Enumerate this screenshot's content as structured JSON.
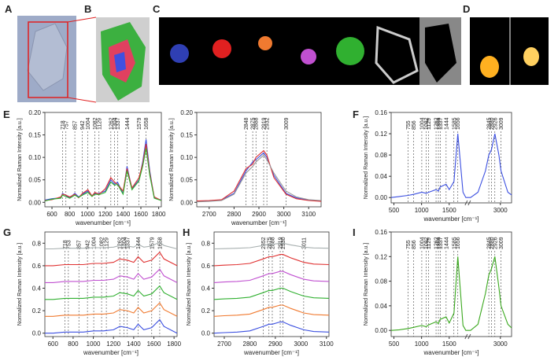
{
  "image_panels": [
    {
      "label": "A"
    },
    {
      "label": "B"
    },
    {
      "label": "C"
    },
    {
      "label": "D"
    }
  ],
  "chart_data": [
    {
      "type": "line",
      "panel": "E",
      "ylabel": "Normalized Raman Intensity [a.u.]",
      "xlabel": "wavenumber [cm⁻¹]",
      "xlim": [
        520,
        1830
      ],
      "xticks": [
        600,
        800,
        1000,
        1200,
        1400,
        1600,
        1800
      ],
      "ylim": [
        -0.01,
        0.2
      ],
      "yticks": [
        {
          "value": 0,
          "label": "0.00"
        },
        0.05,
        {
          "value": 0.1,
          "label": "0.10"
        },
        0.15,
        {
          "value": 0.2,
          "label": "0.20"
        }
      ],
      "peaks": [
        718,
        757,
        857,
        942,
        1004,
        1082,
        1129,
        1262,
        1304,
        1337,
        1444,
        1579,
        1658
      ],
      "x": [
        520,
        600,
        700,
        718,
        757,
        800,
        857,
        900,
        942,
        1004,
        1050,
        1082,
        1129,
        1200,
        1262,
        1304,
        1337,
        1400,
        1444,
        1500,
        1579,
        1620,
        1658,
        1700,
        1750,
        1830
      ],
      "series": [
        {
          "color": "#3b4fe0",
          "values": [
            0.005,
            0.008,
            0.01,
            0.02,
            0.015,
            0.01,
            0.02,
            0.012,
            0.018,
            0.025,
            0.015,
            0.02,
            0.02,
            0.025,
            0.05,
            0.04,
            0.045,
            0.02,
            0.08,
            0.03,
            0.05,
            0.09,
            0.14,
            0.07,
            0.01,
            0.005
          ]
        },
        {
          "color": "#e03030",
          "values": [
            0.004,
            0.006,
            0.012,
            0.018,
            0.016,
            0.012,
            0.018,
            0.01,
            0.02,
            0.028,
            0.014,
            0.022,
            0.018,
            0.03,
            0.055,
            0.045,
            0.04,
            0.025,
            0.075,
            0.032,
            0.055,
            0.085,
            0.13,
            0.065,
            0.012,
            0.004
          ]
        },
        {
          "color": "#30b030",
          "values": [
            0.003,
            0.007,
            0.009,
            0.016,
            0.013,
            0.009,
            0.016,
            0.011,
            0.016,
            0.022,
            0.013,
            0.018,
            0.017,
            0.022,
            0.045,
            0.038,
            0.04,
            0.018,
            0.07,
            0.028,
            0.048,
            0.08,
            0.12,
            0.06,
            0.009,
            0.004
          ]
        }
      ]
    },
    {
      "type": "line",
      "ylabel": "Normalized Raman Intensity [a.u.]",
      "xlabel": "wavenumber [cm⁻¹]",
      "xlim": [
        2650,
        3150
      ],
      "xticks": [
        2700,
        2800,
        2900,
        3000,
        3100
      ],
      "ylim": [
        -0.01,
        0.2
      ],
      "yticks": [
        {
          "value": 0,
          "label": "0.00"
        },
        0.05,
        {
          "value": 0.1,
          "label": "0.10"
        },
        0.15,
        {
          "value": 0.2,
          "label": "0.20"
        }
      ],
      "peaks": [
        2848,
        2875,
        2888,
        2919,
        2932,
        3009
      ],
      "x": [
        2650,
        2700,
        2750,
        2800,
        2848,
        2875,
        2888,
        2919,
        2932,
        2960,
        3009,
        3050,
        3100,
        3150
      ],
      "series": [
        {
          "color": "#3b4fe0",
          "values": [
            0.002,
            0.003,
            0.005,
            0.02,
            0.07,
            0.09,
            0.095,
            0.11,
            0.1,
            0.06,
            0.02,
            0.01,
            0.005,
            0.003
          ]
        },
        {
          "color": "#e03030",
          "values": [
            0.003,
            0.004,
            0.006,
            0.025,
            0.075,
            0.085,
            0.1,
            0.115,
            0.105,
            0.055,
            0.018,
            0.008,
            0.004,
            0.002
          ]
        },
        {
          "color": "#999999",
          "values": [
            0.001,
            0.002,
            0.004,
            0.018,
            0.065,
            0.08,
            0.09,
            0.105,
            0.095,
            0.065,
            0.025,
            0.012,
            0.006,
            0.004
          ]
        }
      ]
    },
    {
      "type": "line",
      "panel": "F",
      "ylabel": "Normalized Raman Intensity [a.u.]",
      "xlabel": "wavenumber [cm⁻¹]",
      "xlim": [
        450,
        3150
      ],
      "xbreak": [
        1800,
        2600
      ],
      "xticks": [
        500,
        1000,
        1500,
        3000
      ],
      "ylim": [
        -0.01,
        0.16
      ],
      "yticks": [
        {
          "value": 0,
          "label": "0.00"
        },
        0.04,
        0.08,
        0.12,
        0.16
      ],
      "peaks": [
        755,
        856,
        1004,
        1082,
        1129,
        1262,
        1304,
        1337,
        1444,
        1585,
        1656,
        2845,
        2880,
        2926,
        3009
      ],
      "x": [
        450,
        600,
        755,
        856,
        1004,
        1082,
        1129,
        1262,
        1304,
        1337,
        1444,
        1500,
        1585,
        1656,
        1750,
        1800,
        2600,
        2700,
        2800,
        2845,
        2880,
        2926,
        2980,
        3009,
        3100,
        3150
      ],
      "series": [
        {
          "color": "#3b4fe0",
          "values": [
            0.0,
            0.002,
            0.004,
            0.006,
            0.01,
            0.008,
            0.01,
            0.015,
            0.012,
            0.02,
            0.025,
            0.015,
            0.03,
            0.12,
            0.01,
            0.0,
            0.0,
            0.01,
            0.05,
            0.08,
            0.09,
            0.12,
            0.08,
            0.05,
            0.01,
            0.005
          ]
        }
      ]
    },
    {
      "type": "line",
      "panel": "G",
      "ylabel": "Normalized Raman Intensity [a.u.]",
      "xlabel": "wavenumber [cm⁻¹]",
      "xlim": [
        520,
        1830
      ],
      "xticks": [
        600,
        800,
        1000,
        1200,
        1400,
        1600,
        1800
      ],
      "ylim": [
        -0.03,
        0.9
      ],
      "yticks": [
        {
          "value": 0,
          "label": "0.0"
        },
        0.2,
        0.4,
        0.6,
        0.8
      ],
      "peaks": [
        718,
        753,
        857,
        942,
        1004,
        1082,
        1129,
        1262,
        1304,
        1337,
        1444,
        1579,
        1658
      ],
      "x": [
        520,
        600,
        718,
        800,
        900,
        1004,
        1100,
        1200,
        1262,
        1337,
        1400,
        1444,
        1500,
        1579,
        1658,
        1700,
        1830
      ],
      "series": [
        {
          "color": "#3b4fe0",
          "values": [
            0,
            0,
            0.01,
            0.01,
            0.01,
            0.02,
            0.02,
            0.03,
            0.06,
            0.05,
            0.03,
            0.08,
            0.03,
            0.05,
            0.12,
            0.06,
            0
          ]
        },
        {
          "color": "#f07a30",
          "values": [
            0.15,
            0.15,
            0.16,
            0.16,
            0.16,
            0.17,
            0.17,
            0.18,
            0.21,
            0.2,
            0.18,
            0.23,
            0.18,
            0.2,
            0.27,
            0.21,
            0.15
          ]
        },
        {
          "color": "#30b030",
          "values": [
            0.3,
            0.3,
            0.31,
            0.31,
            0.31,
            0.32,
            0.32,
            0.33,
            0.36,
            0.35,
            0.33,
            0.38,
            0.33,
            0.35,
            0.42,
            0.36,
            0.3
          ]
        },
        {
          "color": "#c050d0",
          "values": [
            0.45,
            0.45,
            0.46,
            0.46,
            0.46,
            0.47,
            0.47,
            0.48,
            0.51,
            0.5,
            0.48,
            0.53,
            0.48,
            0.5,
            0.57,
            0.51,
            0.45
          ]
        },
        {
          "color": "#e03030",
          "values": [
            0.6,
            0.6,
            0.61,
            0.61,
            0.61,
            0.62,
            0.62,
            0.63,
            0.66,
            0.65,
            0.63,
            0.68,
            0.63,
            0.65,
            0.72,
            0.66,
            0.6
          ]
        },
        {
          "color": "#a8b0b0",
          "values": [
            0.75,
            0.75,
            0.755,
            0.755,
            0.755,
            0.76,
            0.76,
            0.765,
            0.78,
            0.775,
            0.765,
            0.79,
            0.765,
            0.775,
            0.81,
            0.78,
            0.75
          ]
        }
      ]
    },
    {
      "type": "line",
      "panel": "H",
      "ylabel": "Normalized Raman Intensity [a.u.]",
      "xlabel": "wavenumber [cm⁻¹]",
      "xlim": [
        2660,
        3110
      ],
      "xticks": [
        2700,
        2800,
        2900,
        3000,
        3100
      ],
      "ylim": [
        -0.03,
        0.9
      ],
      "yticks": [
        {
          "value": 0,
          "label": "0.0"
        },
        0.2,
        0.4,
        0.6,
        0.8
      ],
      "peaks": [
        2852,
        2875,
        2888,
        2919,
        2930,
        3011
      ],
      "x": [
        2660,
        2700,
        2750,
        2800,
        2852,
        2875,
        2888,
        2919,
        2930,
        2960,
        3011,
        3050,
        3110
      ],
      "series": [
        {
          "color": "#3b4fe0",
          "values": [
            0,
            0.005,
            0.01,
            0.02,
            0.06,
            0.08,
            0.08,
            0.1,
            0.1,
            0.07,
            0.03,
            0.015,
            0.01
          ]
        },
        {
          "color": "#f07a30",
          "values": [
            0.15,
            0.155,
            0.16,
            0.17,
            0.21,
            0.23,
            0.23,
            0.25,
            0.25,
            0.22,
            0.18,
            0.165,
            0.16
          ]
        },
        {
          "color": "#30b030",
          "values": [
            0.3,
            0.305,
            0.31,
            0.32,
            0.36,
            0.38,
            0.38,
            0.4,
            0.4,
            0.37,
            0.33,
            0.315,
            0.31
          ]
        },
        {
          "color": "#c050d0",
          "values": [
            0.45,
            0.455,
            0.46,
            0.47,
            0.51,
            0.53,
            0.53,
            0.55,
            0.55,
            0.52,
            0.48,
            0.465,
            0.46
          ]
        },
        {
          "color": "#e03030",
          "values": [
            0.6,
            0.605,
            0.61,
            0.62,
            0.66,
            0.68,
            0.68,
            0.7,
            0.7,
            0.67,
            0.63,
            0.615,
            0.61
          ]
        },
        {
          "color": "#a8b0b0",
          "values": [
            0.75,
            0.752,
            0.755,
            0.76,
            0.78,
            0.79,
            0.79,
            0.8,
            0.8,
            0.785,
            0.765,
            0.758,
            0.755
          ]
        }
      ]
    },
    {
      "type": "line",
      "panel": "I",
      "ylabel": "Normalized Raman Intensity [a.u.]",
      "xlabel": "wavenumber [cm⁻¹]",
      "xlim": [
        450,
        3150
      ],
      "xbreak": [
        1800,
        2600
      ],
      "xticks": [
        500,
        1000,
        1500,
        3000
      ],
      "ylim": [
        -0.01,
        0.16
      ],
      "yticks": [
        {
          "value": 0,
          "label": "0.00"
        },
        0.04,
        0.08,
        0.12,
        0.16
      ],
      "peaks": [
        755,
        856,
        1004,
        1082,
        1129,
        1262,
        1304,
        1337,
        1444,
        1585,
        1656,
        2845,
        2880,
        2926,
        3009
      ],
      "x": [
        450,
        600,
        755,
        856,
        1004,
        1082,
        1129,
        1262,
        1304,
        1337,
        1444,
        1500,
        1585,
        1656,
        1750,
        1800,
        2600,
        2700,
        2800,
        2845,
        2880,
        2926,
        2980,
        3009,
        3100,
        3150
      ],
      "series": [
        {
          "color": "#3aa81e",
          "values": [
            0.0,
            0.001,
            0.003,
            0.005,
            0.008,
            0.006,
            0.009,
            0.014,
            0.011,
            0.018,
            0.022,
            0.012,
            0.028,
            0.12,
            0.008,
            0.0,
            0.0,
            0.01,
            0.06,
            0.09,
            0.1,
            0.12,
            0.07,
            0.04,
            0.01,
            0.004
          ]
        }
      ]
    }
  ]
}
